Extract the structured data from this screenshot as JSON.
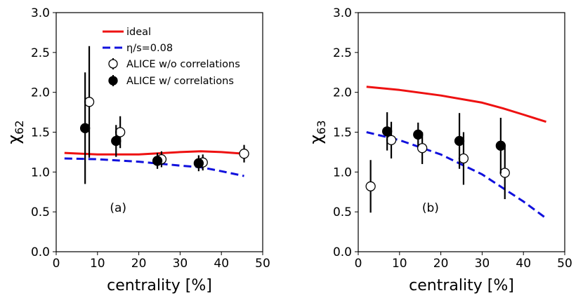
{
  "chart_data": [
    {
      "type": "line",
      "panel_label": "(a)",
      "xlabel": "centrality [%]",
      "ylabel": "χ62",
      "ylabel_main": "χ",
      "ylabel_sub": "62",
      "xlim": [
        0,
        50
      ],
      "ylim": [
        0.0,
        3.0
      ],
      "xticks": [
        0,
        10,
        20,
        30,
        40,
        50
      ],
      "yticks": [
        0.0,
        0.5,
        1.0,
        1.5,
        2.0,
        2.5,
        3.0
      ],
      "xtick_labels": [
        "0",
        "10",
        "20",
        "30",
        "40",
        "50"
      ],
      "ytick_labels": [
        "0.0",
        "0.5",
        "1.0",
        "1.5",
        "2.0",
        "2.5",
        "3.0"
      ],
      "legend_position": "top-right",
      "legend": [
        {
          "label": "ideal",
          "series": "ideal"
        },
        {
          "label": "η/s=0.08",
          "series": "eta_s"
        },
        {
          "label": "ALICE w/o correlations",
          "series": "wo_corr"
        },
        {
          "label": "ALICE w/ correlations",
          "series": "w_corr"
        }
      ],
      "series": [
        {
          "name": "ideal",
          "kind": "line",
          "style": "solid",
          "color": "#ee1111",
          "x": [
            2,
            10,
            20,
            30,
            35,
            40,
            45.5
          ],
          "y": [
            1.24,
            1.22,
            1.22,
            1.25,
            1.26,
            1.25,
            1.23
          ]
        },
        {
          "name": "η/s=0.08",
          "kind": "line",
          "style": "dashed",
          "color": "#1111dd",
          "x": [
            2,
            10,
            20,
            30,
            35,
            40,
            45.5
          ],
          "y": [
            1.17,
            1.16,
            1.13,
            1.08,
            1.06,
            1.01,
            0.95
          ]
        },
        {
          "name": "ALICE w/o correlations",
          "kind": "points",
          "filled": false,
          "x": [
            8,
            15.5,
            25.5,
            35.5,
            45.5
          ],
          "y": [
            1.88,
            1.5,
            1.16,
            1.12,
            1.23
          ],
          "yerr": [
            0.7,
            0.2,
            0.1,
            0.1,
            0.11
          ]
        },
        {
          "name": "ALICE w/ correlations",
          "kind": "points",
          "filled": true,
          "x": [
            7,
            14.5,
            24.5,
            34.5
          ],
          "y": [
            1.55,
            1.39,
            1.14,
            1.11
          ],
          "yerr": [
            0.7,
            0.2,
            0.1,
            0.1
          ]
        }
      ]
    },
    {
      "type": "line",
      "panel_label": "(b)",
      "xlabel": "centrality [%]",
      "ylabel": "χ63",
      "ylabel_main": "χ",
      "ylabel_sub": "63",
      "xlim": [
        0,
        50
      ],
      "ylim": [
        0.0,
        3.0
      ],
      "xticks": [
        0,
        10,
        20,
        30,
        40,
        50
      ],
      "yticks": [
        0.0,
        0.5,
        1.0,
        1.5,
        2.0,
        2.5,
        3.0
      ],
      "xtick_labels": [
        "0",
        "10",
        "20",
        "30",
        "40",
        "50"
      ],
      "ytick_labels": [
        "0.0",
        "0.5",
        "1.0",
        "1.5",
        "2.0",
        "2.5",
        "3.0"
      ],
      "series": [
        {
          "name": "ideal",
          "kind": "line",
          "style": "solid",
          "color": "#ee1111",
          "x": [
            2,
            10,
            20,
            30,
            35,
            40,
            45.5
          ],
          "y": [
            2.07,
            2.03,
            1.96,
            1.87,
            1.8,
            1.72,
            1.63
          ]
        },
        {
          "name": "η/s=0.08",
          "kind": "line",
          "style": "dashed",
          "color": "#1111dd",
          "x": [
            2,
            10,
            20,
            30,
            35,
            40,
            45.5
          ],
          "y": [
            1.5,
            1.4,
            1.22,
            0.97,
            0.8,
            0.63,
            0.42
          ]
        },
        {
          "name": "ALICE w/o correlations",
          "kind": "points",
          "filled": false,
          "x": [
            3,
            8,
            15.5,
            25.5,
            35.5
          ],
          "y": [
            0.82,
            1.4,
            1.3,
            1.17,
            0.99
          ],
          "yerr": [
            0.33,
            0.23,
            0.2,
            0.33,
            0.33
          ]
        },
        {
          "name": "ALICE w/ correlations",
          "kind": "points",
          "filled": true,
          "x": [
            7,
            14.5,
            24.5,
            34.5
          ],
          "y": [
            1.51,
            1.47,
            1.39,
            1.33
          ],
          "yerr": [
            0.24,
            0.15,
            0.35,
            0.35
          ]
        }
      ]
    }
  ]
}
